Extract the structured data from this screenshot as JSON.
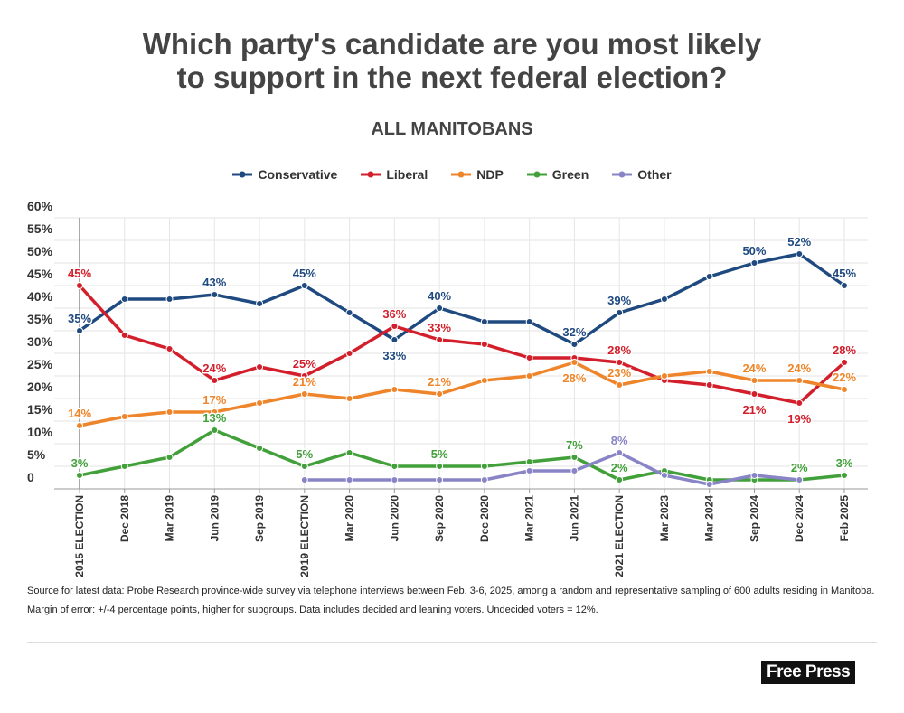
{
  "chart_data": {
    "type": "line",
    "title": "Which party's candidate are you most likely to support in the next federal election?",
    "subtitle": "ALL MANITOBANS",
    "categories": [
      "2015 ELECTION",
      "Dec 2018",
      "Mar 2019",
      "Jun 2019",
      "Sep 2019",
      "2019 ELECTION",
      "Mar 2020",
      "Jun 2020",
      "Sep 2020",
      "Dec 2020",
      "Mar 2021",
      "Jun 2021",
      "2021 ELECTION",
      "Mar 2023",
      "Mar 2024",
      "Sep 2024",
      "Dec 2024",
      "Feb 2025"
    ],
    "series": [
      {
        "name": "Conservative",
        "color": "#1f4a80",
        "values": [
          35,
          42,
          42,
          43,
          41,
          45,
          39,
          33,
          40,
          37,
          37,
          32,
          39,
          42,
          47,
          50,
          52,
          45
        ],
        "value_labels": [
          "35%",
          null,
          null,
          "43%",
          null,
          "45%",
          null,
          "33%",
          "40%",
          null,
          null,
          "32%",
          "39%",
          null,
          null,
          "50%",
          "52%",
          "45%"
        ]
      },
      {
        "name": "Liberal",
        "color": "#d21f2b",
        "values": [
          45,
          34,
          31,
          24,
          27,
          25,
          30,
          36,
          33,
          32,
          29,
          29,
          28,
          24,
          23,
          21,
          19,
          28
        ],
        "value_labels": [
          "45%",
          null,
          null,
          "24%",
          null,
          "25%",
          null,
          "36%",
          "33%",
          null,
          null,
          null,
          "28%",
          null,
          null,
          "21%",
          "19%",
          "28%"
        ]
      },
      {
        "name": "NDP",
        "color": "#ef852b",
        "values": [
          14,
          16,
          17,
          17,
          19,
          21,
          20,
          22,
          21,
          24,
          25,
          28,
          23,
          25,
          26,
          24,
          24,
          22
        ],
        "value_labels": [
          "14%",
          null,
          null,
          "17%",
          null,
          "21%",
          null,
          null,
          "21%",
          null,
          null,
          "28%",
          "23%",
          null,
          null,
          "24%",
          "24%",
          "22%"
        ]
      },
      {
        "name": "Green",
        "color": "#42a03a",
        "values": [
          3,
          5,
          7,
          13,
          9,
          5,
          8,
          5,
          5,
          5,
          6,
          7,
          2,
          4,
          2,
          2,
          2,
          3
        ],
        "value_labels": [
          "3%",
          null,
          null,
          "13%",
          null,
          "5%",
          null,
          null,
          "5%",
          null,
          null,
          "7%",
          "2%",
          null,
          null,
          null,
          "2%",
          "3%"
        ]
      },
      {
        "name": "Other",
        "color": "#8884c6",
        "values": [
          null,
          null,
          null,
          null,
          null,
          2,
          2,
          2,
          2,
          2,
          4,
          4,
          8,
          3,
          1,
          3,
          2,
          null
        ],
        "value_labels": [
          null,
          null,
          null,
          null,
          null,
          null,
          null,
          null,
          null,
          null,
          null,
          null,
          "8%",
          null,
          null,
          null,
          null,
          null
        ]
      }
    ],
    "ylim": [
      0,
      60
    ],
    "yticks": [
      0,
      {
        "value": 5,
        "label": "5%"
      },
      {
        "value": 10,
        "label": "10%"
      },
      {
        "value": 15,
        "label": "15%"
      },
      {
        "value": 20,
        "label": "20%"
      },
      {
        "value": 25,
        "label": "25%"
      },
      {
        "value": 30,
        "label": "30%"
      },
      {
        "value": 35,
        "label": "35%"
      },
      {
        "value": 40,
        "label": "40%"
      },
      {
        "value": 45,
        "label": "45%"
      },
      {
        "value": 50,
        "label": "50%"
      },
      {
        "value": 55,
        "label": "55%"
      },
      {
        "value": 60,
        "label": "60%"
      }
    ],
    "grid": true,
    "source": "Source for latest data: Probe Research province-wide survey via telephone interviews between Feb. 3-6, 2025, among a random and representative sampling of 600 adults residing in Manitoba. Margin of error: +/-4 percentage points, higher for subgroups. Data includes decided and leaning voters. Undecided voters = 12%.",
    "logo": "Free Press"
  }
}
